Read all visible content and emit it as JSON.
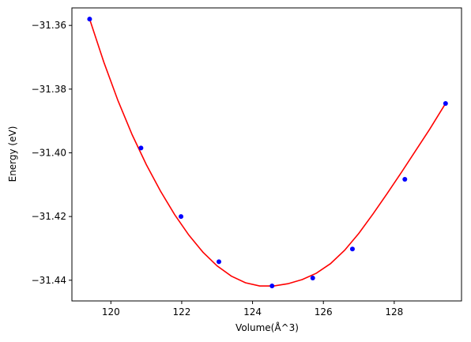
{
  "chart_data": {
    "type": "scatter",
    "xlabel": "Volume(Å^3)",
    "ylabel": "Energy (eV)",
    "xlim": [
      118.9,
      129.9
    ],
    "ylim": [
      -31.4465,
      -31.3545
    ],
    "x_ticks": [
      120,
      122,
      124,
      126,
      128
    ],
    "x_tick_labels": [
      "120",
      "122",
      "124",
      "126",
      "128"
    ],
    "y_ticks": [
      -31.36,
      -31.38,
      -31.4,
      -31.42,
      -31.44
    ],
    "y_tick_labels": [
      "−31.36",
      "−31.38",
      "−31.40",
      "−31.42",
      "−31.44"
    ],
    "grid": false,
    "series": [
      {
        "kind": "points",
        "color": "#0000ff",
        "x": [
          119.4,
          120.85,
          121.98,
          123.05,
          124.55,
          125.7,
          126.82,
          128.3,
          129.45
        ],
        "y": [
          -31.358,
          -31.3985,
          -31.42,
          -31.4342,
          -31.4418,
          -31.4393,
          -31.4302,
          -31.4083,
          -31.3845
        ]
      },
      {
        "kind": "fit-curve",
        "color": "#ff0000",
        "x": [
          119.4,
          119.8,
          120.2,
          120.6,
          121.0,
          121.4,
          121.8,
          122.2,
          122.6,
          123.0,
          123.4,
          123.8,
          124.2,
          124.6,
          125.0,
          125.4,
          125.8,
          126.2,
          126.6,
          127.0,
          127.4,
          127.8,
          128.2,
          128.6,
          129.0,
          129.45
        ],
        "y": [
          -31.358,
          -31.3715,
          -31.3836,
          -31.3943,
          -31.4037,
          -31.412,
          -31.4194,
          -31.4258,
          -31.4312,
          -31.4355,
          -31.4387,
          -31.4408,
          -31.4418,
          -31.4418,
          -31.4411,
          -31.4398,
          -31.4378,
          -31.4348,
          -31.4306,
          -31.4253,
          -31.4192,
          -31.4128,
          -31.4062,
          -31.3994,
          -31.3926,
          -31.3845
        ]
      }
    ]
  }
}
